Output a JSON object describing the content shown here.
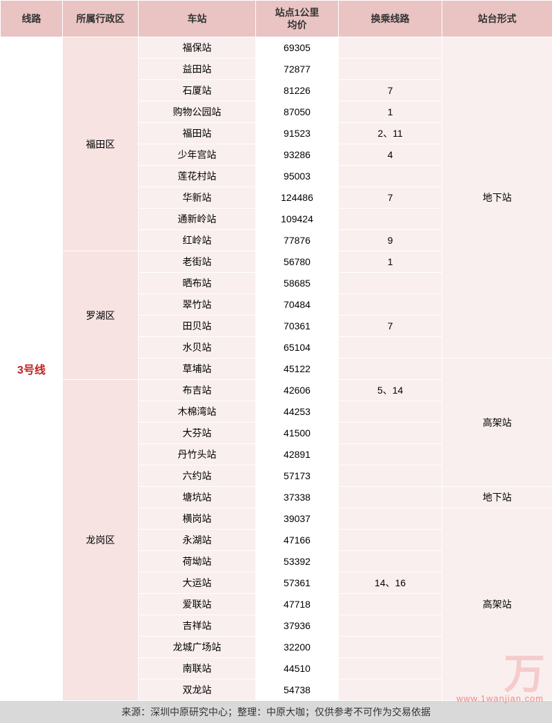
{
  "columns": {
    "line": "线路",
    "district": "所属行政区",
    "station": "车站",
    "price": "站点1公里\n均价",
    "transfer": "换乘线路",
    "platform": "站台形式"
  },
  "col_widths": {
    "line": 90,
    "district": 110,
    "station": 170,
    "price": 120,
    "transfer": 150,
    "platform": 160
  },
  "colors": {
    "header_bg": "#e9c4c2",
    "district_bg": "#f6e3e2",
    "station_bg": "#f9efee",
    "transfer_bg": "#f9efee",
    "platform_bg": "#f9efee",
    "line_text": "#c02020",
    "footer_bg": "#d9d9d9",
    "watermark": "#f4b4b4",
    "watermark_url": "#f08888"
  },
  "line_label": "3号线",
  "districts": [
    {
      "name": "福田区",
      "rowspan": 10
    },
    {
      "name": "罗湖区",
      "rowspan": 6
    },
    {
      "name": "龙岗区",
      "rowspan": 15
    }
  ],
  "platforms": [
    {
      "name": "地下站",
      "rowspan": 15
    },
    {
      "name": "高架站",
      "rowspan": 6
    },
    {
      "name": "地下站",
      "rowspan": 1
    },
    {
      "name": "高架站",
      "rowspan": 9
    }
  ],
  "rows": [
    {
      "station": "福保站",
      "price": "69305",
      "transfer": ""
    },
    {
      "station": "益田站",
      "price": "72877",
      "transfer": ""
    },
    {
      "station": "石厦站",
      "price": "81226",
      "transfer": "7"
    },
    {
      "station": "购物公园站",
      "price": "87050",
      "transfer": "1"
    },
    {
      "station": "福田站",
      "price": "91523",
      "transfer": "2、11"
    },
    {
      "station": "少年宫站",
      "price": "93286",
      "transfer": "4"
    },
    {
      "station": "莲花村站",
      "price": "95003",
      "transfer": ""
    },
    {
      "station": "华新站",
      "price": "124486",
      "transfer": "7"
    },
    {
      "station": "通新岭站",
      "price": "109424",
      "transfer": ""
    },
    {
      "station": "红岭站",
      "price": "77876",
      "transfer": "9"
    },
    {
      "station": "老街站",
      "price": "56780",
      "transfer": "1"
    },
    {
      "station": "晒布站",
      "price": "58685",
      "transfer": ""
    },
    {
      "station": "翠竹站",
      "price": "70484",
      "transfer": ""
    },
    {
      "station": "田贝站",
      "price": "70361",
      "transfer": "7"
    },
    {
      "station": "水贝站",
      "price": "65104",
      "transfer": ""
    },
    {
      "station": "草埔站",
      "price": "45122",
      "transfer": ""
    },
    {
      "station": "布吉站",
      "price": "42606",
      "transfer": "5、14"
    },
    {
      "station": "木棉湾站",
      "price": "44253",
      "transfer": ""
    },
    {
      "station": "大芬站",
      "price": "41500",
      "transfer": ""
    },
    {
      "station": "丹竹头站",
      "price": "42891",
      "transfer": ""
    },
    {
      "station": "六约站",
      "price": "57173",
      "transfer": ""
    },
    {
      "station": "塘坑站",
      "price": "37338",
      "transfer": ""
    },
    {
      "station": "横岗站",
      "price": "39037",
      "transfer": ""
    },
    {
      "station": "永湖站",
      "price": "47166",
      "transfer": ""
    },
    {
      "station": "荷坳站",
      "price": "53392",
      "transfer": ""
    },
    {
      "station": "大运站",
      "price": "57361",
      "transfer": "14、16"
    },
    {
      "station": "爱联站",
      "price": "47718",
      "transfer": ""
    },
    {
      "station": "吉祥站",
      "price": "37936",
      "transfer": ""
    },
    {
      "station": "龙城广场站",
      "price": "32200",
      "transfer": ""
    },
    {
      "station": "南联站",
      "price": "44510",
      "transfer": ""
    },
    {
      "station": "双龙站",
      "price": "54738",
      "transfer": ""
    }
  ],
  "footer": "来源：深圳中原研究中心；整理：中原大咖；仅供参考不可作为交易依据",
  "watermark_text": "万",
  "watermark_url": "www.1wanjian.com"
}
